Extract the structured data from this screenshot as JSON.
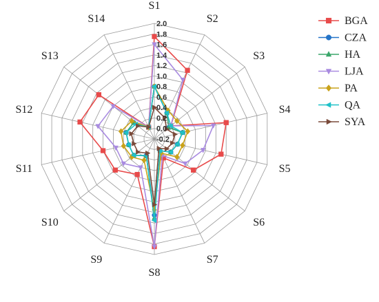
{
  "chart_data": {
    "type": "radar",
    "axes": [
      "S1",
      "S2",
      "S3",
      "S4",
      "S5",
      "S6",
      "S7",
      "S8",
      "S9",
      "S10",
      "S11",
      "S12",
      "S13",
      "S14"
    ],
    "range": [
      -0.2,
      2.0
    ],
    "ticks": [
      "-0.2",
      "0.0",
      "0.2",
      "0.4",
      "0.6",
      "0.8",
      "1.0",
      "1.2",
      "1.4",
      "1.6",
      "1.8",
      "2.0"
    ],
    "grid": true,
    "legend_position": "right",
    "series": [
      {
        "name": "BGA",
        "color": "#e84a4a",
        "marker": "square",
        "values": [
          1.75,
          1.25,
          0.2,
          1.2,
          1.1,
          0.75,
          0.2,
          1.85,
          0.55,
          0.75,
          0.8,
          1.25,
          1.15,
          0.05
        ]
      },
      {
        "name": "CZA",
        "color": "#2474c8",
        "marker": "circle",
        "values": [
          0.8,
          0.35,
          0.15,
          0.35,
          0.25,
          0.2,
          0.05,
          1.25,
          0.15,
          0.3,
          0.3,
          0.35,
          0.3,
          0.05
        ]
      },
      {
        "name": "HA",
        "color": "#3aa66a",
        "marker": "triangle",
        "values": [
          0.8,
          0.35,
          0.15,
          0.35,
          0.25,
          0.2,
          0.05,
          1.3,
          0.15,
          0.3,
          0.3,
          0.35,
          0.3,
          0.05
        ]
      },
      {
        "name": "LJA",
        "color": "#a98be0",
        "marker": "tri-down",
        "values": [
          1.6,
          1.05,
          0.2,
          0.95,
          0.75,
          0.55,
          0.15,
          1.85,
          0.4,
          0.55,
          0.55,
          0.9,
          0.8,
          0.05
        ]
      },
      {
        "name": "PA",
        "color": "#c9a21a",
        "marker": "diamond",
        "values": [
          0.8,
          0.4,
          0.35,
          0.45,
          0.35,
          0.35,
          0.1,
          1.15,
          0.25,
          0.35,
          0.4,
          0.45,
          0.35,
          0.05
        ]
      },
      {
        "name": "QA",
        "color": "#1fc1c8",
        "marker": "tri-left",
        "values": [
          0.8,
          0.35,
          0.2,
          0.35,
          0.25,
          0.2,
          0.05,
          1.35,
          0.15,
          0.3,
          0.3,
          0.35,
          0.25,
          0.05
        ]
      },
      {
        "name": "SYA",
        "color": "#7a4a3a",
        "marker": "tri-right",
        "values": [
          0.4,
          0.25,
          0.1,
          0.2,
          0.15,
          0.1,
          0.0,
          1.05,
          0.1,
          0.2,
          0.2,
          0.25,
          0.2,
          0.05
        ]
      }
    ]
  }
}
